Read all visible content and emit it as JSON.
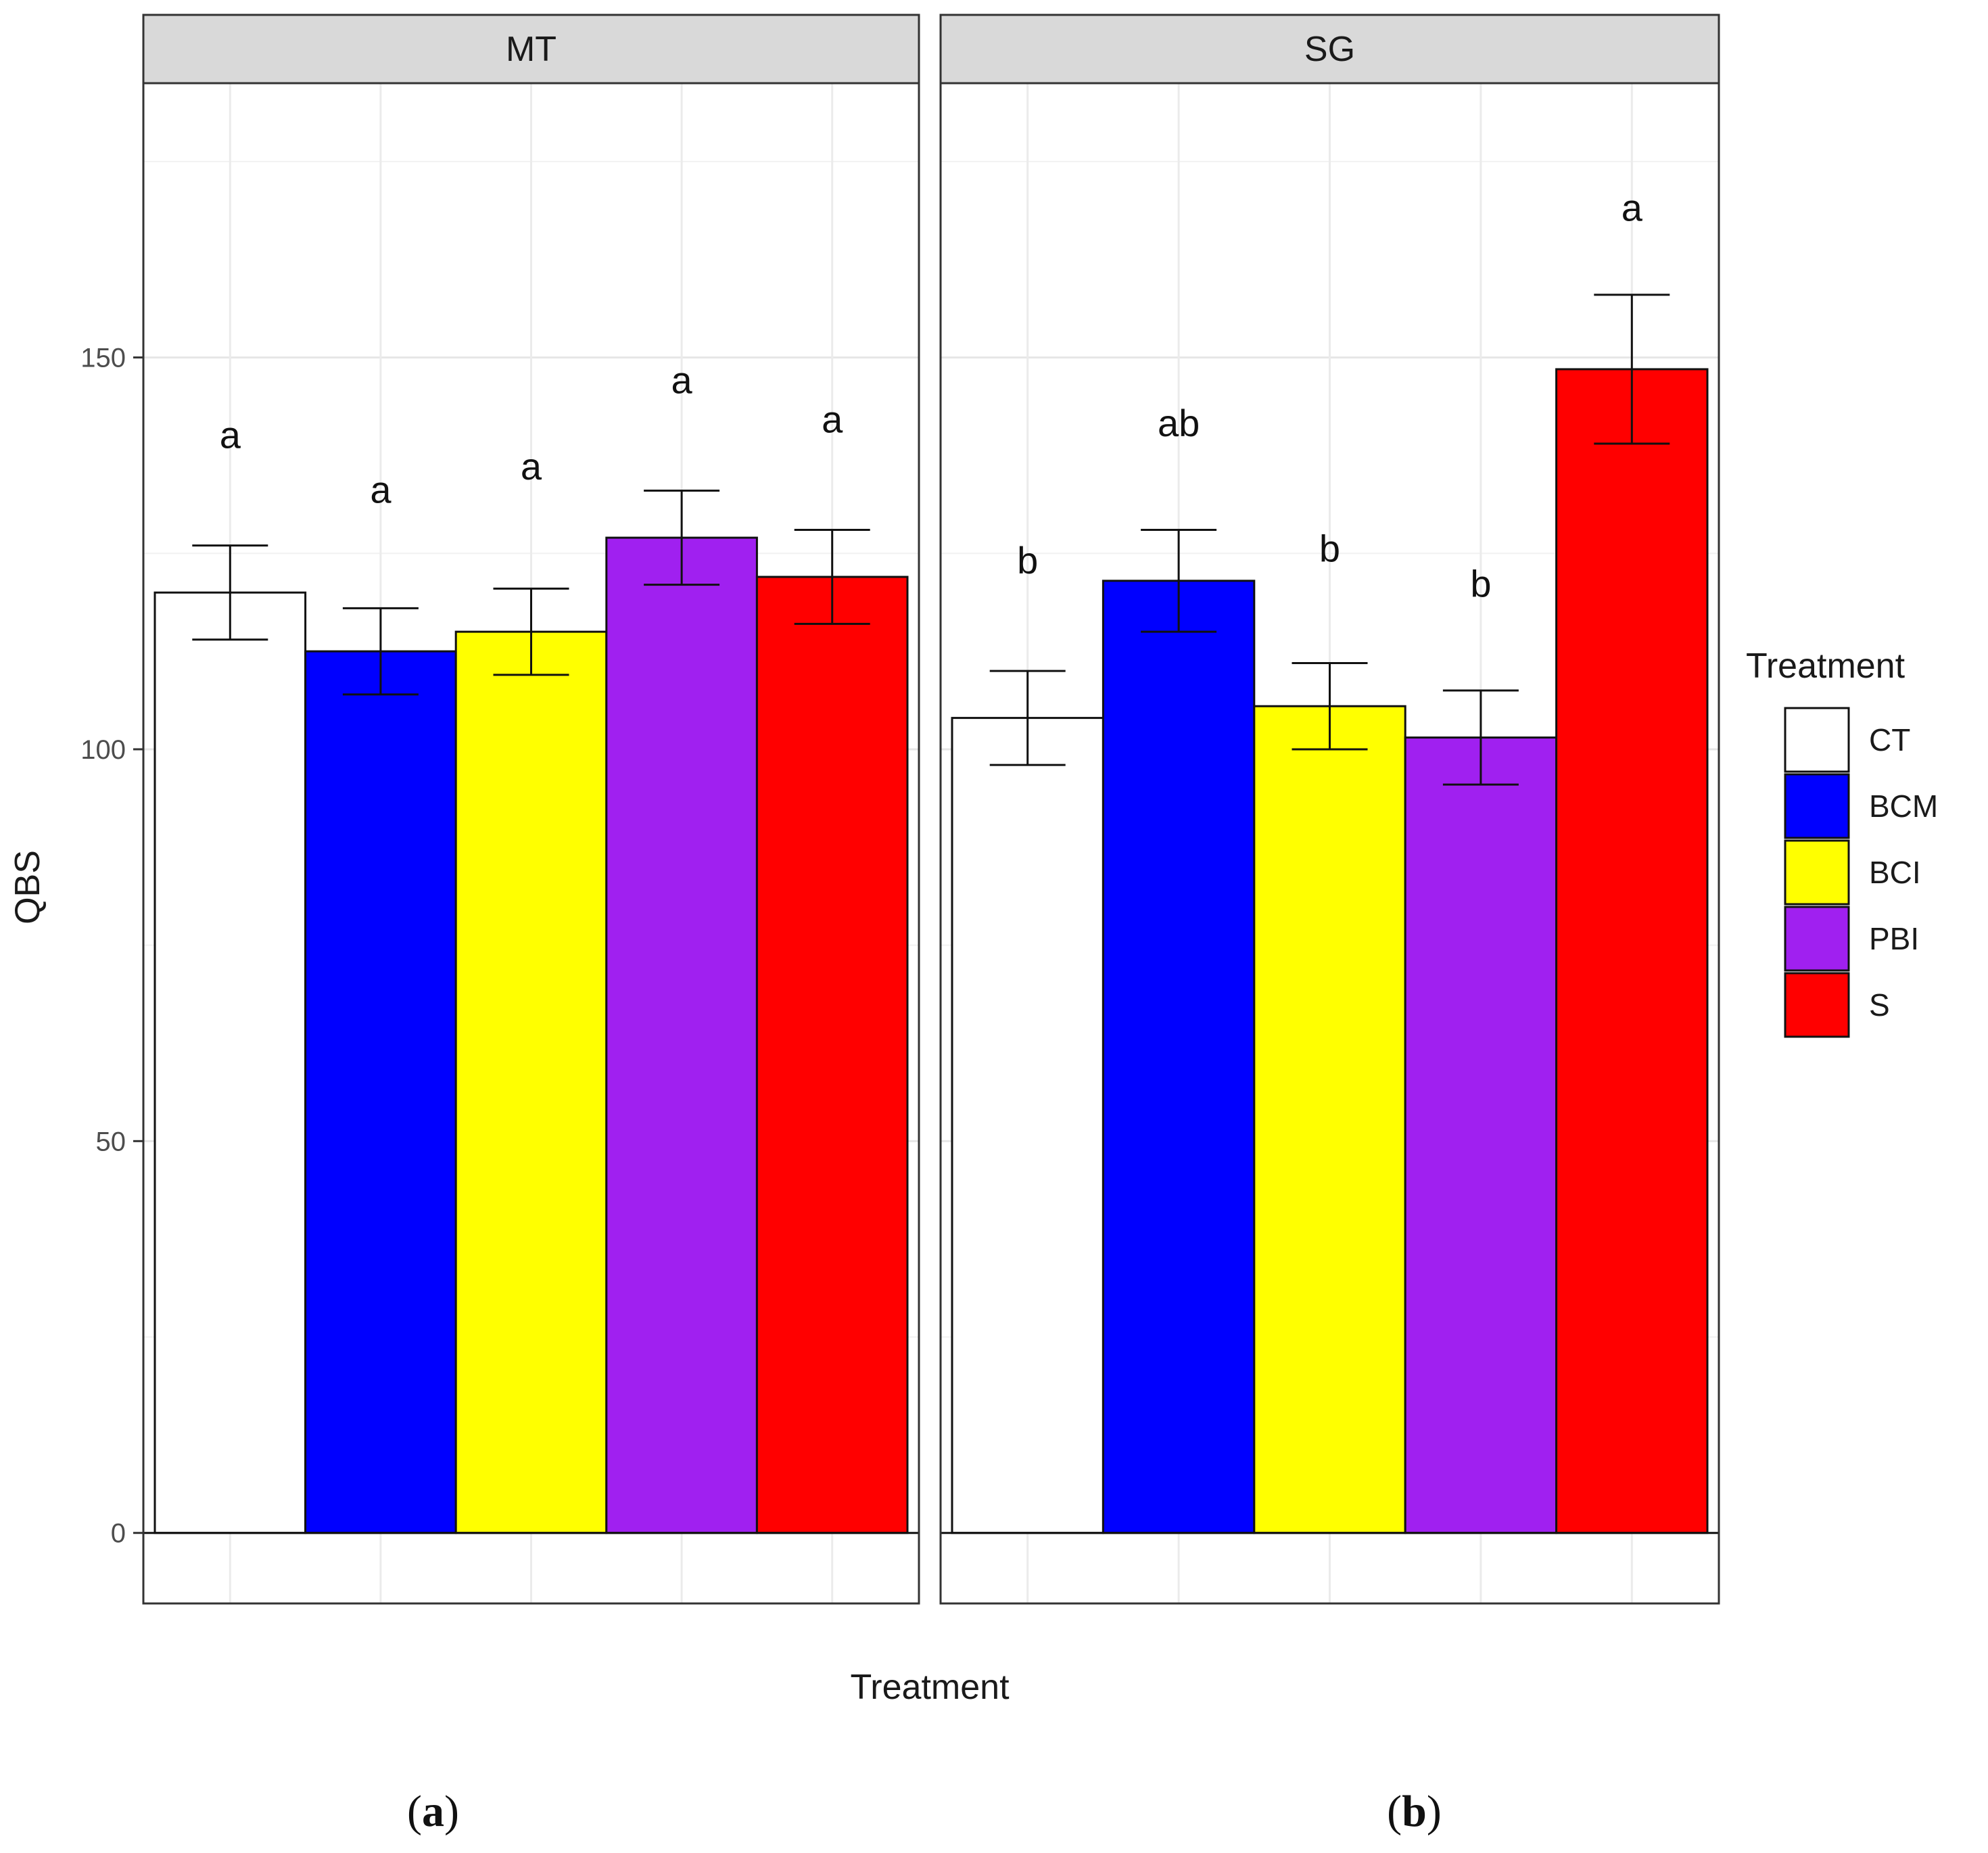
{
  "chart_data": {
    "type": "bar",
    "title": "",
    "xlabel": "Treatment",
    "ylabel": "QBS",
    "ylim": [
      -9,
      185
    ],
    "yticks": [
      0,
      50,
      100,
      150
    ],
    "grid": true,
    "legend": {
      "title": "Treatment",
      "position": "right",
      "entries": [
        {
          "label": "CT",
          "color": "#ffffff"
        },
        {
          "label": "BCM",
          "color": "#0000ff"
        },
        {
          "label": "BCI",
          "color": "#ffff00"
        },
        {
          "label": "PBI",
          "color": "#a020f0"
        },
        {
          "label": "S",
          "color": "#ff0000"
        }
      ]
    },
    "categories": [
      "CT",
      "BCM",
      "BCI",
      "PBI",
      "S"
    ],
    "panels": [
      {
        "title": "MT",
        "caption": "a",
        "values": [
          120,
          112.5,
          115,
          127,
          122
        ],
        "errors": [
          6,
          5.5,
          5.5,
          6,
          6
        ],
        "letters": [
          "a",
          "a",
          "a",
          "a",
          "a"
        ],
        "letter_y": [
          140,
          133,
          136,
          147,
          142
        ]
      },
      {
        "title": "SG",
        "caption": "b",
        "values": [
          104,
          121.5,
          105.5,
          101.5,
          148.5
        ],
        "errors": [
          6,
          6.5,
          5.5,
          6,
          9.5
        ],
        "letters": [
          "b",
          "ab",
          "b",
          "b",
          "a"
        ],
        "letter_y": [
          124,
          141.5,
          125.5,
          121,
          169
        ]
      }
    ]
  }
}
